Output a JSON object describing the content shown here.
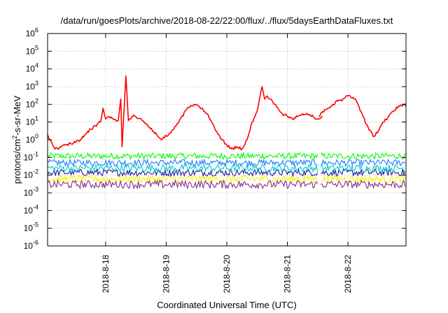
{
  "chart_data": {
    "type": "line",
    "title": "/data/run/goesPlots/archive/2018-08-22/22:00/flux/../flux/5daysEarthDataFluxes.txt",
    "xlabel": "Coordinated Universal Time (UTC)",
    "ylabel": "protons/cm2-s-sr-MeV",
    "ylabel_parts": {
      "before_sup": "protons/cm",
      "sup": "2",
      "after_sup": "-s-sr-MeV"
    },
    "y_scale": "log",
    "ylim": [
      1e-06,
      1000000.0
    ],
    "y_ticks": [
      {
        "base": "10",
        "exp": "-6",
        "value": 1e-06
      },
      {
        "base": "10",
        "exp": "-5",
        "value": 1e-05
      },
      {
        "base": "10",
        "exp": "-4",
        "value": 0.0001
      },
      {
        "base": "10",
        "exp": "-3",
        "value": 0.001
      },
      {
        "base": "10",
        "exp": "-2",
        "value": 0.01
      },
      {
        "base": "10",
        "exp": "-1",
        "value": 0.1
      },
      {
        "base": "10",
        "exp": "0",
        "value": 1
      },
      {
        "base": "10",
        "exp": "1",
        "value": 10
      },
      {
        "base": "10",
        "exp": "2",
        "value": 100
      },
      {
        "base": "10",
        "exp": "3",
        "value": 1000
      },
      {
        "base": "10",
        "exp": "4",
        "value": 10000
      },
      {
        "base": "10",
        "exp": "5",
        "value": 100000
      },
      {
        "base": "10",
        "exp": "6",
        "value": 1000000
      }
    ],
    "xlim": [
      "2018-08-17T01:00",
      "2018-08-22T23:00"
    ],
    "x_ticks": [
      {
        "label": "2018-8-18",
        "value": "2018-08-18T00:00"
      },
      {
        "label": "2018-8-19",
        "value": "2018-08-19T00:00"
      },
      {
        "label": "2018-8-20",
        "value": "2018-08-20T00:00"
      },
      {
        "label": "2018-8-21",
        "value": "2018-08-21T00:00"
      },
      {
        "label": "2018-8-22",
        "value": "2018-08-22T00:00"
      }
    ],
    "grid": true,
    "legend": "none",
    "series": [
      {
        "color": "#ff0000",
        "x": [
          "2018-08-17T01:00",
          "2018-08-17T02:00",
          "2018-08-17T03:00",
          "2018-08-17T04:00",
          "2018-08-17T06:00",
          "2018-08-17T08:00",
          "2018-08-17T10:00",
          "2018-08-17T12:00",
          "2018-08-17T14:00",
          "2018-08-17T16:00",
          "2018-08-17T18:00",
          "2018-08-17T20:00",
          "2018-08-17T22:00",
          "2018-08-17T23:00",
          "2018-08-18T00:00",
          "2018-08-18T01:00",
          "2018-08-18T03:00",
          "2018-08-18T05:00",
          "2018-08-18T06:00",
          "2018-08-18T06:30",
          "2018-08-18T07:00",
          "2018-08-18T08:00",
          "2018-08-18T09:00",
          "2018-08-18T10:00",
          "2018-08-18T10:30",
          "2018-08-18T11:00",
          "2018-08-18T12:00",
          "2018-08-18T14:00",
          "2018-08-18T16:00",
          "2018-08-18T19:00",
          "2018-08-18T22:00",
          "2018-08-19T01:00",
          "2018-08-19T03:00",
          "2018-08-19T05:00",
          "2018-08-19T08:00",
          "2018-08-19T11:00",
          "2018-08-19T14:00",
          "2018-08-19T16:00",
          "2018-08-19T18:00",
          "2018-08-19T20:00",
          "2018-08-19T22:00",
          "2018-08-20T00:00",
          "2018-08-20T02:00",
          "2018-08-20T04:00",
          "2018-08-20T06:00",
          "2018-08-20T08:00",
          "2018-08-20T10:00",
          "2018-08-20T12:00",
          "2018-08-20T14:00",
          "2018-08-20T15:00",
          "2018-08-20T16:00",
          "2018-08-20T17:00",
          "2018-08-20T19:00",
          "2018-08-20T21:00",
          "2018-08-20T22:00",
          "2018-08-21T00:00",
          "2018-08-21T02:00",
          "2018-08-21T04:00",
          "2018-08-21T06:00",
          "2018-08-21T09:00",
          "2018-08-21T12:00",
          "2018-08-21T14:00"
        ],
        "values": [
          2,
          1,
          0.5,
          0.3,
          0.4,
          0.5,
          0.6,
          0.7,
          1,
          2,
          4,
          6,
          10,
          60,
          15,
          20,
          15,
          12,
          200,
          0.4,
          10,
          4000,
          12,
          15,
          20,
          25,
          20,
          15,
          8,
          3,
          1,
          2,
          4,
          10,
          50,
          100,
          60,
          30,
          10,
          3,
          1,
          0.5,
          0.3,
          0.4,
          0.3,
          1,
          10,
          40,
          1000,
          200,
          300,
          200,
          100,
          40,
          30,
          20,
          15,
          20,
          30,
          25,
          15,
          20
        ]
      },
      {
        "color": "#ff0000",
        "x": [
          "2018-08-21T12:30",
          "2018-08-21T14:00",
          "2018-08-21T16:00",
          "2018-08-21T18:00",
          "2018-08-21T20:00",
          "2018-08-21T22:00",
          "2018-08-22T00:00",
          "2018-08-22T02:00",
          "2018-08-22T04:00",
          "2018-08-22T06:00",
          "2018-08-22T08:00",
          "2018-08-22T10:00",
          "2018-08-22T12:00",
          "2018-08-22T14:00",
          "2018-08-22T16:00",
          "2018-08-22T18:00",
          "2018-08-22T20:00",
          "2018-08-22T22:00",
          "2018-08-22T23:00"
        ],
        "values": [
          20,
          40,
          60,
          100,
          150,
          200,
          300,
          250,
          100,
          20,
          5,
          1.5,
          3,
          10,
          20,
          40,
          80,
          100,
          80
        ]
      },
      {
        "color": "#00ff00",
        "level": 0.12,
        "gap": [
          "2018-08-21T12:00",
          "2018-08-21T13:00"
        ]
      },
      {
        "color": "#1a7cff",
        "level": 0.05,
        "gap": [
          "2018-08-21T12:00",
          "2018-08-21T13:00"
        ]
      },
      {
        "color": "#1a1aaa",
        "level": 0.014,
        "gap": [
          "2018-08-21T12:00",
          "2018-08-21T13:00"
        ]
      },
      {
        "color": "#00cccc",
        "level": 0.025,
        "gap": [
          "2018-08-21T12:00",
          "2018-08-21T13:00"
        ]
      },
      {
        "color": "#f5f500",
        "level": 0.006,
        "gap": [
          "2018-08-21T12:00",
          "2018-08-21T13:00"
        ]
      },
      {
        "color": "#8b2a8b",
        "level": 0.003,
        "gap": [
          "2018-08-21T12:00",
          "2018-08-21T13:00"
        ]
      }
    ]
  }
}
